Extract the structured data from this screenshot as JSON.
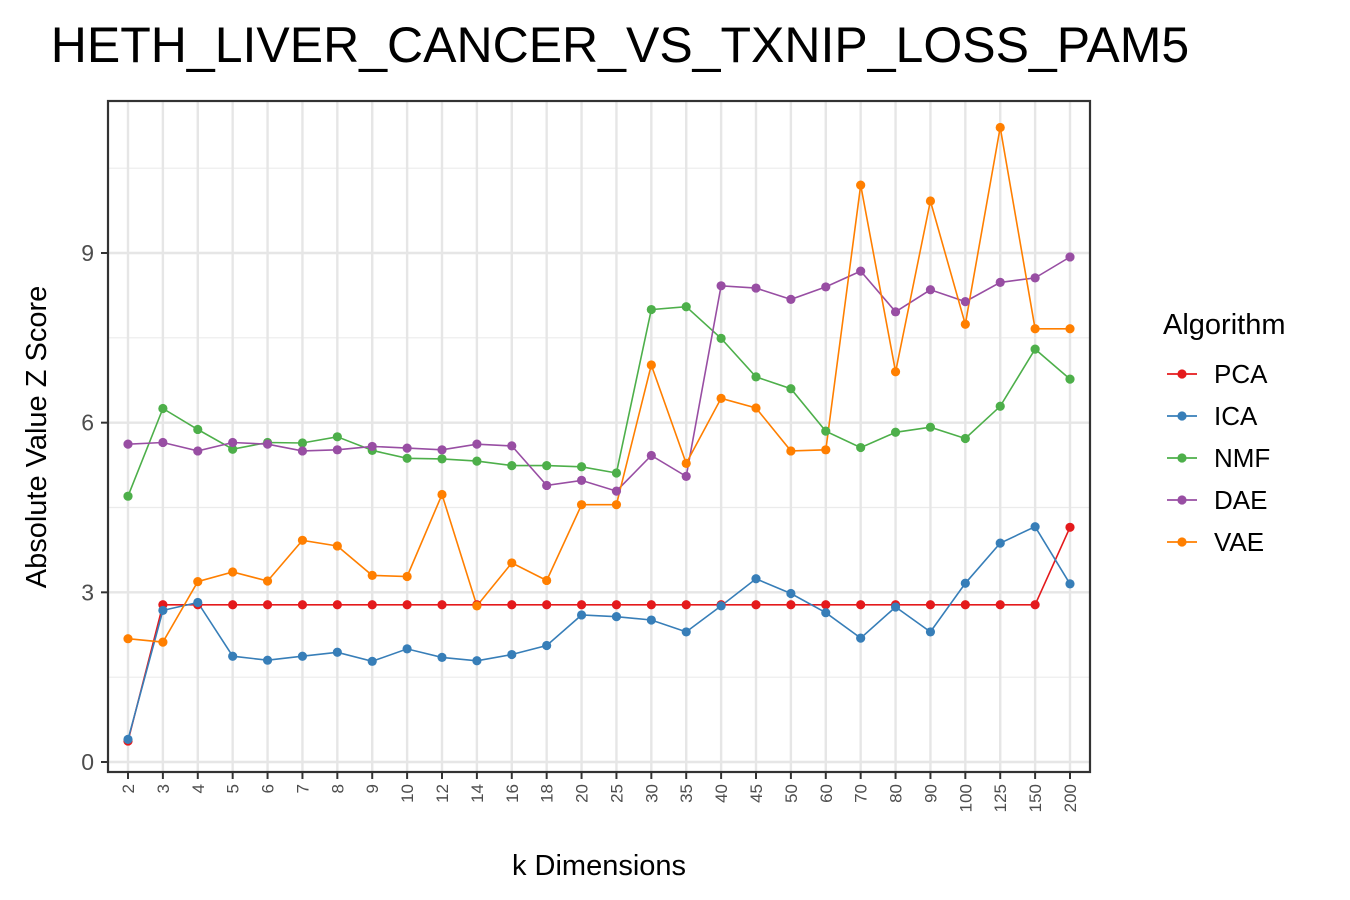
{
  "chart_data": {
    "type": "line",
    "title": "HETH_LIVER_CANCER_VS_TXNIP_LOSS_PAM5",
    "xlabel": "k Dimensions",
    "ylabel": "Absolute Value Z Score",
    "categories": [
      "2",
      "3",
      "4",
      "5",
      "6",
      "7",
      "8",
      "9",
      "10",
      "12",
      "14",
      "16",
      "18",
      "20",
      "25",
      "30",
      "35",
      "40",
      "45",
      "50",
      "60",
      "70",
      "80",
      "90",
      "100",
      "125",
      "150",
      "200"
    ],
    "yticks": [
      0,
      3,
      6,
      9
    ],
    "ylim": [
      -0.25,
      11.6
    ],
    "grid": true,
    "legend": {
      "title": "Algorithm",
      "placement": "right"
    },
    "series": [
      {
        "name": "PCA",
        "color": "#e41a1c",
        "values": [
          0.37,
          2.78,
          2.78,
          2.78,
          2.78,
          2.78,
          2.78,
          2.78,
          2.78,
          2.78,
          2.78,
          2.78,
          2.78,
          2.78,
          2.78,
          2.78,
          2.78,
          2.78,
          2.78,
          2.78,
          2.78,
          2.78,
          2.78,
          2.78,
          2.78,
          2.78,
          2.78,
          4.15
        ]
      },
      {
        "name": "ICA",
        "color": "#377eb8",
        "values": [
          0.4,
          2.68,
          2.82,
          1.87,
          1.8,
          1.87,
          1.94,
          1.78,
          2.0,
          1.85,
          1.79,
          1.9,
          2.06,
          2.6,
          2.57,
          2.51,
          2.3,
          2.76,
          3.24,
          2.98,
          2.64,
          2.19,
          2.74,
          2.3,
          3.16,
          3.87,
          4.16,
          3.15
        ]
      },
      {
        "name": "NMF",
        "color": "#4daf4a",
        "values": [
          4.7,
          6.25,
          5.88,
          5.53,
          5.65,
          5.64,
          5.75,
          5.51,
          5.37,
          5.36,
          5.32,
          5.24,
          5.24,
          5.22,
          5.11,
          8.0,
          8.05,
          7.49,
          6.81,
          6.6,
          5.85,
          5.56,
          5.83,
          5.92,
          5.72,
          6.29,
          7.3,
          6.77
        ]
      },
      {
        "name": "DAE",
        "color": "#984ea3",
        "values": [
          5.62,
          5.65,
          5.5,
          5.65,
          5.62,
          5.5,
          5.52,
          5.58,
          5.55,
          5.52,
          5.62,
          5.59,
          4.89,
          4.98,
          4.79,
          5.42,
          5.05,
          8.42,
          8.38,
          8.18,
          8.4,
          8.68,
          7.96,
          8.35,
          8.14,
          8.48,
          8.56,
          8.93
        ]
      },
      {
        "name": "VAE",
        "color": "#ff7f00",
        "values": [
          2.18,
          2.12,
          3.19,
          3.36,
          3.2,
          3.92,
          3.82,
          3.3,
          3.28,
          4.73,
          2.76,
          3.52,
          3.21,
          4.55,
          4.55,
          7.02,
          5.28,
          6.43,
          6.26,
          5.5,
          5.52,
          10.2,
          6.9,
          9.92,
          7.74,
          11.22,
          7.66,
          7.66
        ]
      }
    ]
  }
}
